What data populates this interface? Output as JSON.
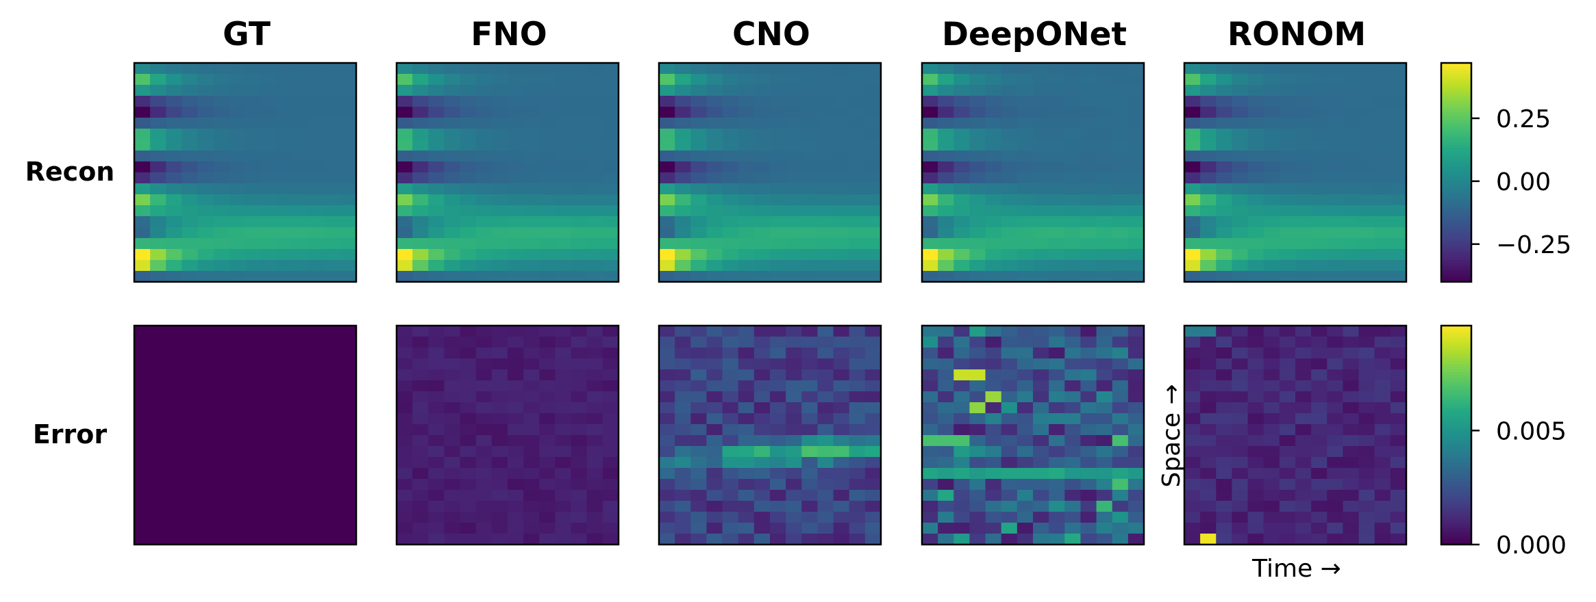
{
  "chart_data": {
    "type": "heatmap",
    "columns": [
      "GT",
      "FNO",
      "CNO",
      "DeepONet",
      "RONOM"
    ],
    "rows": [
      "Recon",
      "Error"
    ],
    "axes": {
      "xlabel": "Time →",
      "ylabel": "Space →"
    },
    "grid": false,
    "colormap": "viridis",
    "recon_colorbar": {
      "vmin": -0.4,
      "vmax": 0.47,
      "ticks": [
        0.25,
        0.0,
        -0.25
      ],
      "tick_labels": [
        "0.25",
        "0.00",
        "−0.25"
      ]
    },
    "error_colorbar": {
      "vmin": 0.0,
      "vmax": 0.0096,
      "ticks": [
        0.005,
        0.0
      ],
      "tick_labels": [
        "0.005",
        "0.000"
      ]
    },
    "grid_cells": {
      "time": 14,
      "space": 20
    },
    "recon_description": "Space–time field; oscillating positive/negative values near t=0 decaying to about −0.1 in upper region and about 0.2 in lower band, peak ≈0.47 at bottom-left",
    "error_summary": [
      {
        "model": "GT",
        "level": 0.0
      },
      {
        "model": "FNO",
        "level": 0.0008
      },
      {
        "model": "CNO",
        "level": 0.0022
      },
      {
        "model": "DeepONet",
        "level": 0.0035
      },
      {
        "model": "RONOM",
        "level": 0.0012
      }
    ]
  }
}
